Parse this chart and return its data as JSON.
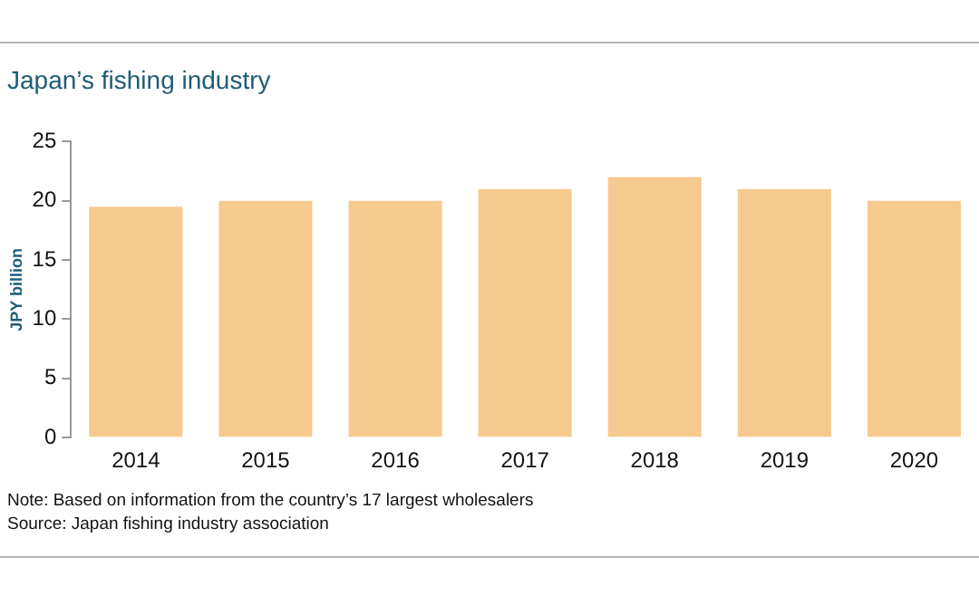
{
  "chart_data": {
    "type": "bar",
    "title": "Japan’s fishing industry",
    "ylabel": "JPY billion",
    "categories": [
      "2014",
      "2015",
      "2016",
      "2017",
      "2018",
      "2019",
      "2020"
    ],
    "values": [
      19.5,
      20,
      20,
      21,
      22,
      21,
      20
    ],
    "color": "#f6c98f",
    "ylim": [
      0,
      25
    ],
    "yticks": [
      0,
      5,
      10,
      15,
      20,
      25
    ],
    "grid": false,
    "annotations": [
      "Note: Based on information from the country’s 17 largest wholesalers",
      "Source: Japan fishing industry association"
    ]
  }
}
